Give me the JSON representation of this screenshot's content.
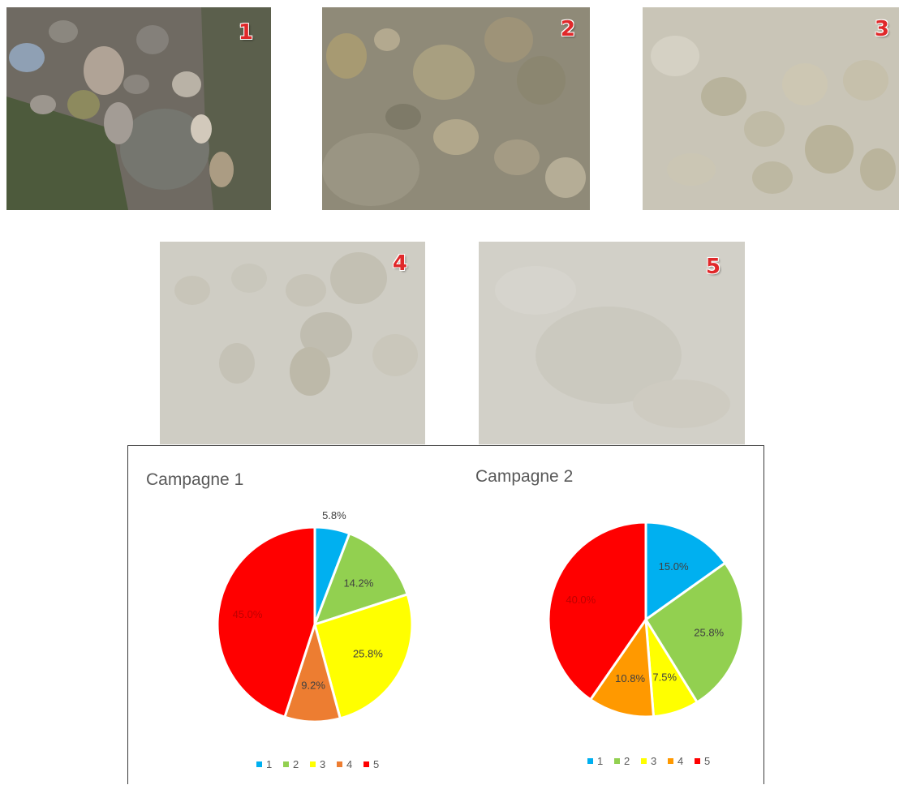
{
  "photos": [
    {
      "label": "1"
    },
    {
      "label": "2"
    },
    {
      "label": "3"
    },
    {
      "label": "4"
    },
    {
      "label": "5"
    }
  ],
  "colors": {
    "1": "#00b0f0",
    "2": "#92d050",
    "3": "#ffff00",
    "4_campagne1": "#ed7d31",
    "4_campagne2": "#ff9900",
    "5": "#ff0000",
    "slice_label_text": "#404040",
    "title_text": "#595959"
  },
  "chart_data": [
    {
      "type": "pie",
      "title": "Campagne 1",
      "categories": [
        "1",
        "2",
        "3",
        "4",
        "5"
      ],
      "values": [
        5.8,
        14.2,
        25.8,
        9.2,
        45.0
      ],
      "data_labels": [
        "5.8%",
        "14.2%",
        "25.8%",
        "9.2%",
        "45.0%"
      ],
      "colors": [
        "#00b0f0",
        "#92d050",
        "#ffff00",
        "#ed7d31",
        "#ff0000"
      ],
      "legend": [
        "1",
        "2",
        "3",
        "4",
        "5"
      ],
      "legend_position": "bottom"
    },
    {
      "type": "pie",
      "title": "Campagne 2",
      "categories": [
        "1",
        "2",
        "3",
        "4",
        "5"
      ],
      "values": [
        15.0,
        25.8,
        7.5,
        10.8,
        40.0
      ],
      "data_labels": [
        "15.0%",
        "25.8%",
        "7.5%",
        "10.8%",
        "40.0%"
      ],
      "colors": [
        "#00b0f0",
        "#92d050",
        "#ffff00",
        "#ff9900",
        "#ff0000"
      ],
      "legend": [
        "1",
        "2",
        "3",
        "4",
        "5"
      ],
      "legend_position": "bottom"
    }
  ]
}
